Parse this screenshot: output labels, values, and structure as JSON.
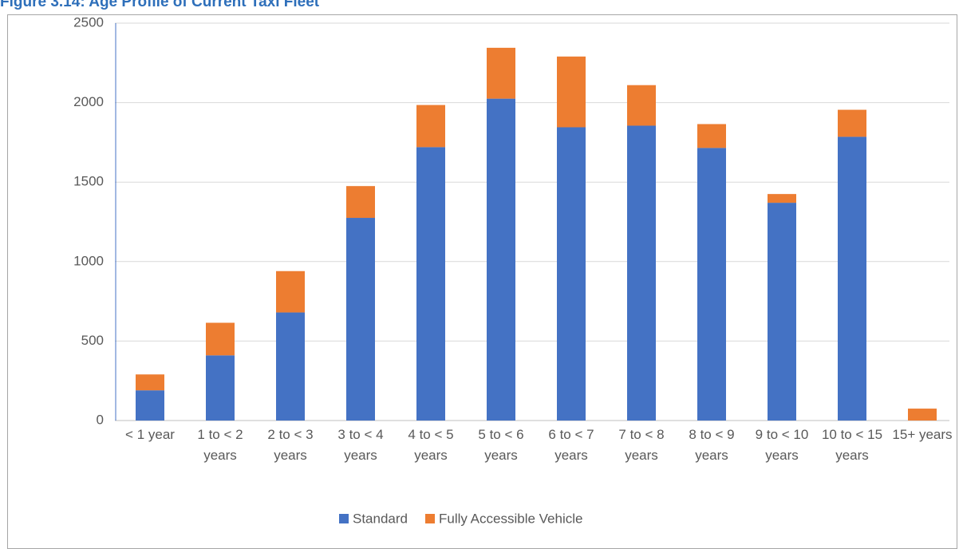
{
  "chart_data": {
    "type": "bar",
    "stacked": true,
    "title": "Figure 3.14: Age Profile of Current Taxi Fleet",
    "categories": [
      "< 1 year",
      "1 to < 2 years",
      "2 to < 3 years",
      "3 to < 4 years",
      "4 to < 5 years",
      "5 to < 6 years",
      "6 to < 7 years",
      "7 to < 8 years",
      "8 to < 9 years",
      "9 to < 10 years",
      "10 to < 15 years",
      "15+ years"
    ],
    "series": [
      {
        "name": "Standard",
        "color": "#4472c4",
        "values": [
          190,
          410,
          680,
          1275,
          1720,
          2025,
          1845,
          1855,
          1715,
          1370,
          1785,
          0
        ]
      },
      {
        "name": "Fully Accessible Vehicle",
        "color": "#ed7d31",
        "values": [
          100,
          205,
          260,
          200,
          265,
          320,
          445,
          255,
          150,
          55,
          170,
          75
        ]
      }
    ],
    "ylim": [
      0,
      2500
    ],
    "yticks": [
      0,
      500,
      1000,
      1500,
      2000,
      2500
    ],
    "grid": true,
    "legend": "bottom"
  }
}
